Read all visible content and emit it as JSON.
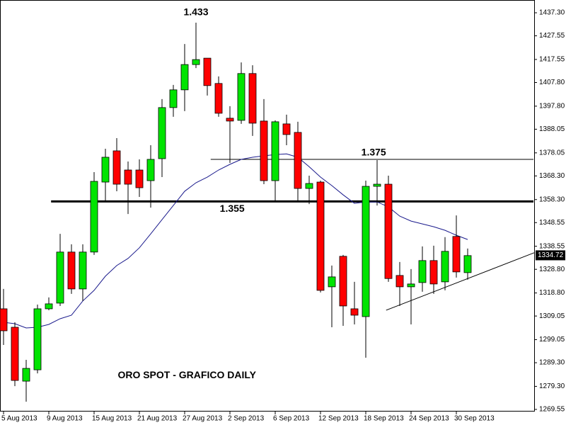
{
  "chart_data": {
    "type": "candlestick",
    "title": "ORO SPOT - GRAFICO DAILY",
    "categories": [
      "5 Aug 2013",
      null,
      null,
      null,
      "9 Aug 2013",
      null,
      null,
      null,
      "15 Aug 2013",
      null,
      null,
      null,
      "21 Aug 2013",
      null,
      null,
      null,
      "27 Aug 2013",
      null,
      null,
      null,
      "2 Sep 2013",
      null,
      null,
      null,
      "6 Sep 2013",
      null,
      null,
      null,
      "12 Sep 2013",
      null,
      null,
      null,
      "18 Sep 2013",
      null,
      null,
      null,
      "24 Sep 2013",
      null,
      null,
      null,
      "30 Sep 2013",
      null
    ],
    "open": [
      1312.1,
      1304.3,
      1281.5,
      1286.3,
      1312.1,
      1314.5,
      1336.1,
      1320.5,
      1336.1,
      1365.7,
      1378.9,
      1370.8,
      1370.8,
      1366.3,
      1375.6,
      1397.2,
      1404.7,
      1415.4,
      1418.1,
      1407.4,
      1392.7,
      1391.8,
      1411.6,
      1391.5,
      1366.3,
      1390.3,
      1386.7,
      1363.0,
      1365.7,
      1321.4,
      1334.3,
      1312.1,
      1308.8,
      1363.9,
      1364.8,
      1326.2,
      1321.4,
      1323.2,
      1332.5,
      1323.5,
      1342.7,
      1327.4
    ],
    "high": [
      1320.5,
      1306.4,
      1290.5,
      1313.9,
      1316.9,
      1343.8,
      1339.4,
      1339.4,
      1369.9,
      1379.8,
      1384.3,
      1374.4,
      1375.3,
      1381.3,
      1400.8,
      1406.8,
      1424.1,
      1433.1,
      1418.1,
      1410.4,
      1397.8,
      1416.3,
      1415.1,
      1400.8,
      1391.8,
      1394.2,
      1391.2,
      1368.4,
      1366.3,
      1330.4,
      1334.9,
      1323.5,
      1366.3,
      1375.0,
      1368.4,
      1331.9,
      1328.9,
      1338.5,
      1338.8,
      1342.4,
      1351.6,
      1337.6
    ],
    "low": [
      1296.8,
      1279.4,
      1272.8,
      1284.8,
      1311.5,
      1313.3,
      1318.4,
      1315.4,
      1334.9,
      1357.3,
      1361.8,
      1352.2,
      1359.4,
      1354.9,
      1367.8,
      1393.3,
      1395.7,
      1413.9,
      1402.3,
      1393.3,
      1373.8,
      1390.3,
      1385.2,
      1364.8,
      1357.9,
      1381.3,
      1357.9,
      1356.4,
      1319.0,
      1304.3,
      1304.9,
      1305.5,
      1291.4,
      1355.8,
      1323.5,
      1313.3,
      1305.5,
      1319.3,
      1318.4,
      1319.9,
      1325.3,
      1324.4
    ],
    "close": [
      1302.8,
      1281.8,
      1286.9,
      1312.1,
      1314.2,
      1336.1,
      1320.5,
      1336.1,
      1366.0,
      1376.2,
      1364.8,
      1364.8,
      1363.3,
      1375.3,
      1397.2,
      1404.7,
      1415.4,
      1417.5,
      1406.5,
      1394.8,
      1391.5,
      1411.6,
      1390.6,
      1366.3,
      1391.2,
      1385.8,
      1363.0,
      1365.1,
      1319.9,
      1325.6,
      1313.3,
      1309.4,
      1363.9,
      1364.8,
      1324.9,
      1321.4,
      1322.6,
      1332.5,
      1322.6,
      1336.4,
      1327.7,
      1334.6
    ],
    "up_color": "#00e400",
    "down_color": "#ff0000",
    "moving_average": {
      "color": "#1a1a8c",
      "values": [
        1306.4,
        1305.8,
        1304.0,
        1304.3,
        1305.5,
        1307.9,
        1309.4,
        1315.4,
        1319.9,
        1325.9,
        1330.4,
        1333.4,
        1337.9,
        1343.8,
        1349.8,
        1355.8,
        1361.8,
        1365.4,
        1367.8,
        1370.8,
        1373.2,
        1375.3,
        1376.2,
        1376.8,
        1377.3,
        1377.6,
        1376.2,
        1372.2,
        1367.8,
        1364.2,
        1360.3,
        1356.7,
        1357.3,
        1357.3,
        1355.2,
        1351.3,
        1349.2,
        1348.0,
        1346.8,
        1345.3,
        1343.2,
        1341.4
      ]
    },
    "levels": [
      {
        "value": 1357.5,
        "from": 4.2,
        "width": 3
      },
      {
        "value": 1375.3,
        "from": 18.3,
        "width": 1
      }
    ],
    "trendline": {
      "x": [
        33.8,
        47.1
      ],
      "y": [
        1311.5,
        1335.8
      ]
    },
    "annotations": [
      {
        "text": "1.433",
        "x": 17,
        "y": 1437.3
      },
      {
        "text": "1.375",
        "x": 32.7,
        "y": 1378.0
      },
      {
        "text": "1.355",
        "x": 20.2,
        "y": 1354.2
      },
      {
        "text": "ORO SPOT - GRAFICO DAILY",
        "x": 16.2,
        "y": 1283.8
      }
    ],
    "last_price": 1334.72,
    "ylim": [
      1267.45,
      1441.2
    ],
    "yticks": [
      {
        "value": 1269.55,
        "label": "1269.55"
      },
      {
        "value": 1279.3,
        "label": "1279.30"
      },
      {
        "value": 1289.3,
        "label": "1289.30"
      },
      {
        "value": 1299.05,
        "label": "1299.05"
      },
      {
        "value": 1309.05,
        "label": "1309.05"
      },
      {
        "value": 1318.8,
        "label": "1318.80"
      },
      {
        "value": 1328.8,
        "label": "1328.80"
      },
      {
        "value": 1338.55,
        "label": "1338.55"
      },
      {
        "value": 1348.55,
        "label": "1348.55"
      },
      {
        "value": 1358.3,
        "label": "1358.30"
      },
      {
        "value": 1368.3,
        "label": "1368.30"
      },
      {
        "value": 1378.05,
        "label": "1378.05"
      },
      {
        "value": 1388.05,
        "label": "1388.05"
      },
      {
        "value": 1397.8,
        "label": "1397.80"
      },
      {
        "value": 1407.8,
        "label": "1407.80"
      },
      {
        "value": 1417.55,
        "label": "1417.55"
      },
      {
        "value": 1427.55,
        "label": "1427.55"
      },
      {
        "value": 1437.3,
        "label": "1437.30"
      }
    ]
  }
}
